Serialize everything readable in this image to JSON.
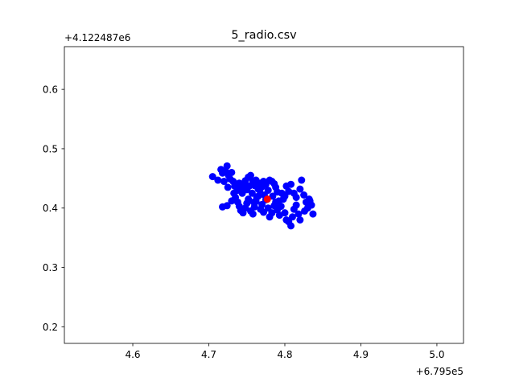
{
  "chart_data": {
    "type": "scatter",
    "title": "5_radio.csv",
    "xlabel": "",
    "ylabel": "",
    "x_offset_label": "+6.795e5",
    "y_offset_label": "+4.122487e6",
    "xlim": [
      4.51,
      5.035
    ],
    "ylim": [
      0.172,
      0.672
    ],
    "x_ticks": [
      4.6,
      4.7,
      4.8,
      4.9,
      5.0
    ],
    "x_tick_labels": [
      "4.6",
      "4.7",
      "4.8",
      "4.9",
      "5.0"
    ],
    "y_ticks": [
      0.2,
      0.3,
      0.4,
      0.5,
      0.6
    ],
    "y_tick_labels": [
      "0.2",
      "0.3",
      "0.4",
      "0.5",
      "0.6"
    ],
    "grid": false,
    "legend": "none",
    "series": [
      {
        "color": "#0000ff",
        "points": [
          [
            4.705,
            0.453
          ],
          [
            4.712,
            0.447
          ],
          [
            4.716,
            0.465
          ],
          [
            4.718,
            0.459
          ],
          [
            4.72,
            0.445
          ],
          [
            4.722,
            0.462
          ],
          [
            4.724,
            0.471
          ],
          [
            4.726,
            0.455
          ],
          [
            4.728,
            0.449
          ],
          [
            4.73,
            0.46
          ],
          [
            4.732,
            0.445
          ],
          [
            4.725,
            0.435
          ],
          [
            4.734,
            0.437
          ],
          [
            4.738,
            0.43
          ],
          [
            4.74,
            0.442
          ],
          [
            4.742,
            0.433
          ],
          [
            4.745,
            0.44
          ],
          [
            4.748,
            0.446
          ],
          [
            4.75,
            0.431
          ],
          [
            4.752,
            0.452
          ],
          [
            4.755,
            0.455
          ],
          [
            4.758,
            0.445
          ],
          [
            4.76,
            0.438
          ],
          [
            4.762,
            0.447
          ],
          [
            4.765,
            0.432
          ],
          [
            4.768,
            0.442
          ],
          [
            4.77,
            0.436
          ],
          [
            4.772,
            0.445
          ],
          [
            4.775,
            0.44
          ],
          [
            4.778,
            0.43
          ],
          [
            4.78,
            0.447
          ],
          [
            4.783,
            0.445
          ],
          [
            4.786,
            0.441
          ],
          [
            4.788,
            0.435
          ],
          [
            4.79,
            0.427
          ],
          [
            4.735,
            0.418
          ],
          [
            4.738,
            0.41
          ],
          [
            4.74,
            0.403
          ],
          [
            4.742,
            0.396
          ],
          [
            4.745,
            0.392
          ],
          [
            4.748,
            0.4
          ],
          [
            4.75,
            0.408
          ],
          [
            4.752,
            0.415
          ],
          [
            4.755,
            0.395
          ],
          [
            4.758,
            0.39
          ],
          [
            4.76,
            0.402
          ],
          [
            4.762,
            0.411
          ],
          [
            4.765,
            0.42
          ],
          [
            4.768,
            0.398
          ],
          [
            4.77,
            0.406
          ],
          [
            4.772,
            0.393
          ],
          [
            4.775,
            0.414
          ],
          [
            4.778,
            0.4
          ],
          [
            4.78,
            0.385
          ],
          [
            4.783,
            0.392
          ],
          [
            4.786,
            0.404
          ],
          [
            4.788,
            0.41
          ],
          [
            4.79,
            0.397
          ],
          [
            4.793,
            0.388
          ],
          [
            4.795,
            0.403
          ],
          [
            4.798,
            0.415
          ],
          [
            4.8,
            0.392
          ],
          [
            4.802,
            0.38
          ],
          [
            4.805,
            0.377
          ],
          [
            4.808,
            0.37
          ],
          [
            4.81,
            0.385
          ],
          [
            4.812,
            0.398
          ],
          [
            4.815,
            0.405
          ],
          [
            4.818,
            0.39
          ],
          [
            4.82,
            0.38
          ],
          [
            4.802,
            0.437
          ],
          [
            4.805,
            0.428
          ],
          [
            4.808,
            0.44
          ],
          [
            4.812,
            0.425
          ],
          [
            4.815,
            0.418
          ],
          [
            4.82,
            0.432
          ],
          [
            4.822,
            0.447
          ],
          [
            4.825,
            0.422
          ],
          [
            4.828,
            0.41
          ],
          [
            4.83,
            0.4
          ],
          [
            4.826,
            0.395
          ],
          [
            4.832,
            0.415
          ],
          [
            4.835,
            0.405
          ],
          [
            4.837,
            0.39
          ],
          [
            4.833,
            0.412
          ],
          [
            4.718,
            0.402
          ],
          [
            4.724,
            0.404
          ],
          [
            4.73,
            0.412
          ],
          [
            4.733,
            0.425
          ],
          [
            4.757,
            0.425
          ],
          [
            4.763,
            0.418
          ],
          [
            4.767,
            0.43
          ],
          [
            4.773,
            0.422
          ],
          [
            4.784,
            0.42
          ],
          [
            4.792,
            0.412
          ],
          [
            4.796,
            0.425
          ],
          [
            4.8,
            0.42
          ],
          [
            4.744,
            0.425
          ],
          [
            4.753,
            0.437
          ],
          [
            4.759,
            0.41
          ]
        ]
      },
      {
        "color": "#ff0000",
        "points": [
          [
            4.777,
            0.415
          ]
        ]
      }
    ]
  }
}
